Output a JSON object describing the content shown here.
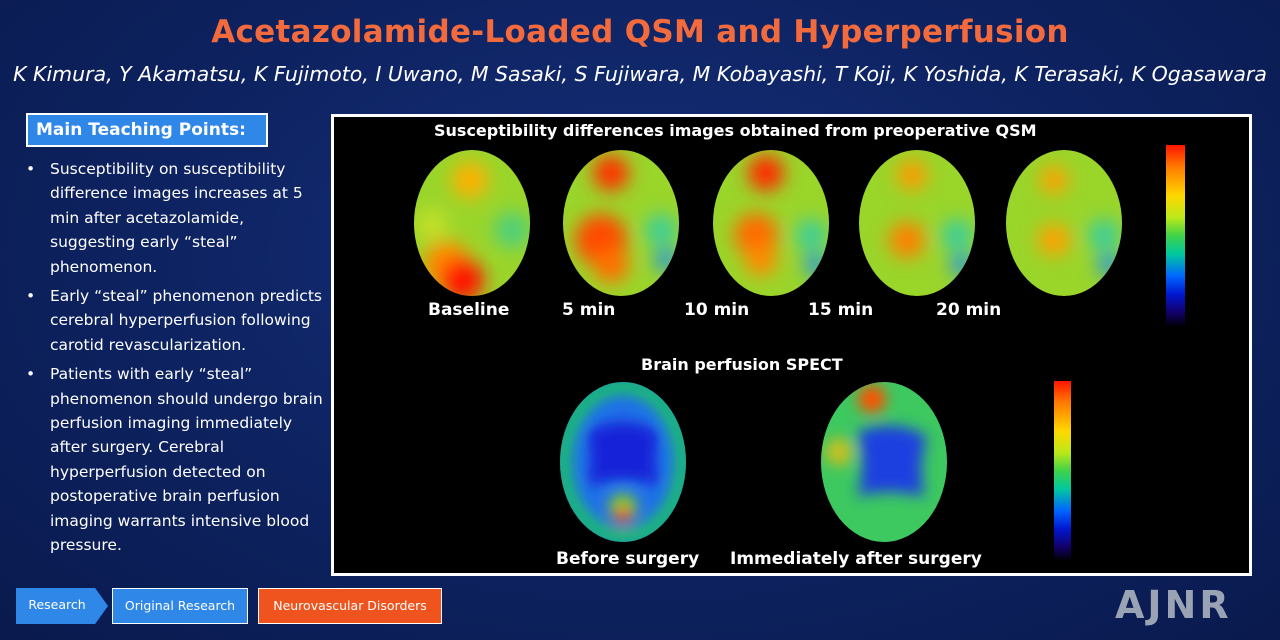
{
  "header": {
    "title": "Acetazolamide-Loaded QSM and Hyperperfusion",
    "authors": "K Kimura, Y Akamatsu, K Fujimoto, I Uwano, M Sasaki, S Fujiwara, M Kobayashi, T Koji, K Yoshida, K Terasaki, K Ogasawara"
  },
  "teaching": {
    "header": "Main Teaching Points:",
    "points": [
      "Susceptibility on susceptibility difference images increases at 5 min after acetazolamide, suggesting early “steal” phenomenon.",
      "Early “steal” phenomenon predicts cerebral hyperperfusion following carotid revascularization.",
      "Patients with early “steal” phenomenon should undergo brain perfusion imaging immediately after surgery. Cerebral hyperperfusion detected on postoperative brain perfusion imaging warrants intensive blood pressure."
    ]
  },
  "figure": {
    "qsm_title": "Susceptibility differences images obtained from preoperative QSM",
    "qsm_labels": [
      "Baseline",
      "5 min",
      "10 min",
      "15 min",
      "20 min"
    ],
    "spect_title": "Brain perfusion SPECT",
    "spect_labels": [
      "Before surgery",
      "Immediately after surgery"
    ]
  },
  "tags": {
    "research": "Research",
    "original": "Original Research",
    "category": "Neurovascular Disorders"
  },
  "logo": "AJNR",
  "colors": {
    "title": "#f36a3c",
    "accent_blue": "#2f87e8",
    "category_orange": "#f0541e",
    "background": "#0d2260"
  }
}
